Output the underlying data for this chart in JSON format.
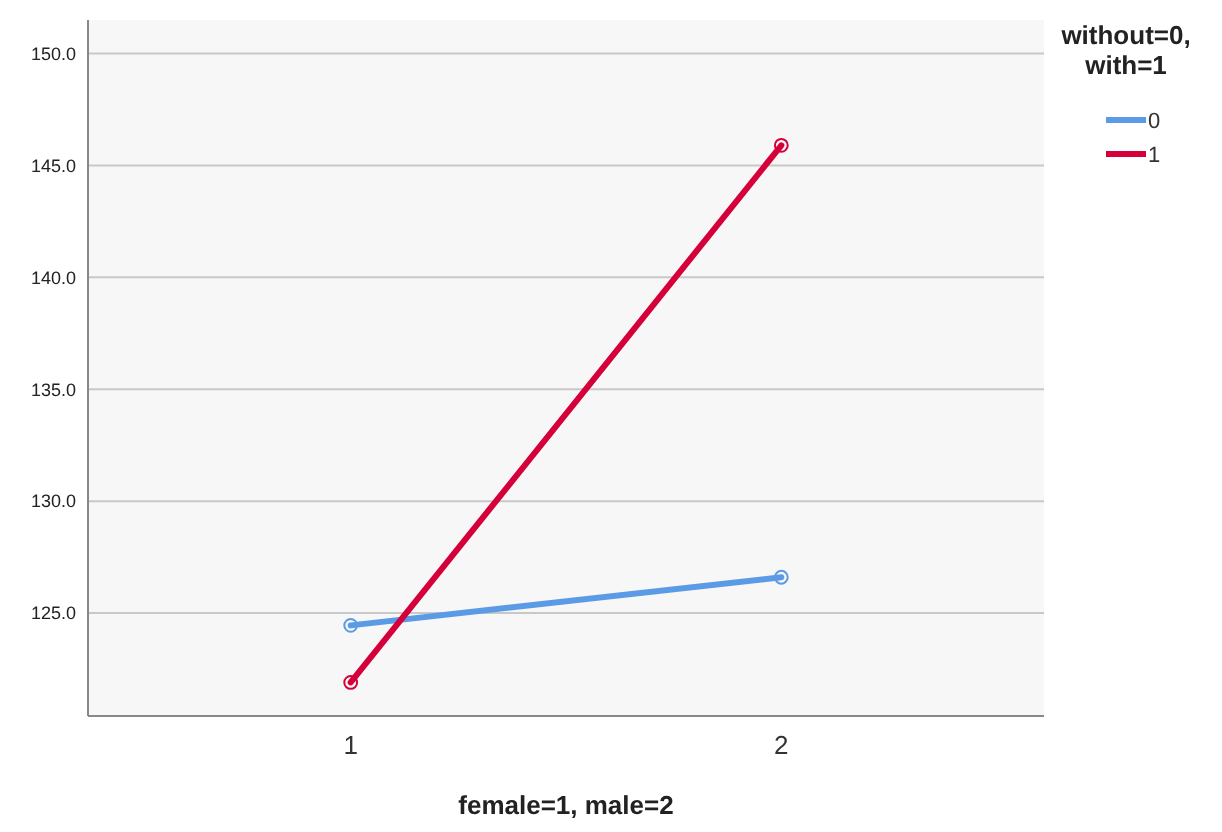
{
  "chart_data": {
    "type": "line",
    "xlabel": "female=1, male=2",
    "legend_title": "without=0, with=1",
    "categories": [
      "1",
      "2"
    ],
    "series": [
      {
        "name": "0",
        "color": "#5b9be6",
        "values": [
          124.45,
          126.6
        ]
      },
      {
        "name": "1",
        "color": "#d5003a",
        "values": [
          121.9,
          145.9
        ]
      }
    ],
    "ylim": [
      120.4,
      151.5
    ],
    "yticks": [
      {
        "value": 125,
        "label": "125.0"
      },
      {
        "value": 130,
        "label": "130.0"
      },
      {
        "value": 135,
        "label": "135.0"
      },
      {
        "value": 140,
        "label": "140.0"
      },
      {
        "value": 145,
        "label": "145.0"
      },
      {
        "value": 150,
        "label": "150.0"
      }
    ],
    "grid": "y",
    "legend": "top right",
    "marker": "circle",
    "line_style": "solid"
  }
}
